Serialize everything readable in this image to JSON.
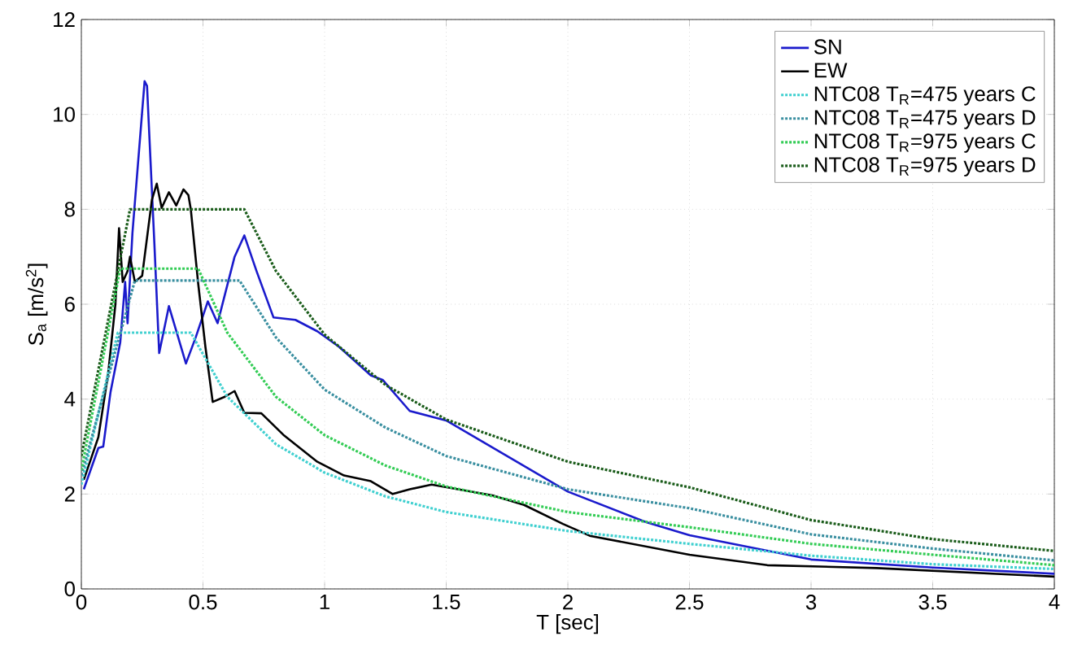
{
  "chart_data": {
    "type": "line",
    "xlabel": "T [sec]",
    "ylabel": "S$_{a}$ [m/s$^{2}$]",
    "xlim": [
      0,
      4
    ],
    "ylim": [
      0,
      12
    ],
    "xticks": [
      0,
      0.5,
      1,
      1.5,
      2,
      2.5,
      3,
      3.5,
      4
    ],
    "yticks": [
      0,
      2,
      4,
      6,
      8,
      10,
      12
    ],
    "grid": true,
    "legend": "top right",
    "series": [
      {
        "name": "SN",
        "color": "#1a1acc",
        "line_style": "solid",
        "x": [
          0.01,
          0.07,
          0.09,
          0.12,
          0.16,
          0.18,
          0.19,
          0.21,
          0.26,
          0.27,
          0.3,
          0.32,
          0.36,
          0.43,
          0.47,
          0.52,
          0.56,
          0.63,
          0.67,
          0.72,
          0.79,
          0.88,
          0.97,
          1.06,
          1.19,
          1.24,
          1.35,
          1.5,
          2.0,
          2.32,
          2.5,
          3.0,
          3.5,
          4.0
        ],
        "values": [
          2.1,
          2.97,
          3.0,
          4.15,
          5.2,
          6.47,
          5.6,
          7.5,
          10.7,
          10.6,
          7.3,
          4.97,
          5.96,
          4.75,
          5.3,
          6.06,
          5.6,
          7.0,
          7.45,
          6.7,
          5.72,
          5.67,
          5.43,
          5.1,
          4.5,
          4.4,
          3.75,
          3.55,
          2.05,
          1.41,
          1.13,
          0.62,
          0.45,
          0.32
        ]
      },
      {
        "name": "EW",
        "color": "#000000",
        "line_style": "solid",
        "x": [
          0.01,
          0.07,
          0.11,
          0.14,
          0.155,
          0.17,
          0.19,
          0.2,
          0.22,
          0.25,
          0.27,
          0.29,
          0.31,
          0.33,
          0.36,
          0.39,
          0.42,
          0.44,
          0.45,
          0.48,
          0.51,
          0.54,
          0.59,
          0.63,
          0.67,
          0.74,
          0.83,
          0.97,
          1.08,
          1.19,
          1.28,
          1.35,
          1.44,
          1.69,
          1.82,
          1.98,
          2.09,
          2.5,
          2.82,
          3.27,
          4.0
        ],
        "values": [
          2.3,
          3.2,
          4.53,
          6.0,
          7.6,
          6.47,
          6.7,
          7.0,
          6.47,
          6.6,
          7.4,
          8.2,
          8.54,
          8.03,
          8.36,
          8.08,
          8.42,
          8.3,
          8.0,
          6.45,
          5.1,
          3.94,
          4.05,
          4.17,
          3.71,
          3.7,
          3.25,
          2.68,
          2.39,
          2.27,
          2.0,
          2.1,
          2.2,
          1.97,
          1.77,
          1.37,
          1.12,
          0.72,
          0.5,
          0.44,
          0.26
        ]
      },
      {
        "name": "NTC08 T$_{R}$=475 years C",
        "color": "#40d0d0",
        "line_style": "dotted",
        "x": [
          0,
          0.15,
          0.45,
          0.6,
          0.8,
          1.0,
          1.25,
          1.5,
          2.0,
          2.5,
          3.0,
          3.5,
          4.0
        ],
        "values": [
          2.2,
          5.4,
          5.4,
          4.05,
          3.05,
          2.45,
          1.95,
          1.62,
          1.22,
          0.95,
          0.7,
          0.52,
          0.42
        ]
      },
      {
        "name": "NTC08 T$_{R}$=475 years D",
        "color": "#3a8fa0",
        "line_style": "dotted",
        "x": [
          0,
          0.22,
          0.65,
          0.8,
          1.0,
          1.25,
          1.5,
          2.0,
          2.5,
          3.0,
          3.5,
          4.0
        ],
        "values": [
          2.4,
          6.5,
          6.5,
          5.3,
          4.2,
          3.4,
          2.8,
          2.1,
          1.7,
          1.15,
          0.85,
          0.6
        ]
      },
      {
        "name": "NTC08 T$_{R}$=975 years C",
        "color": "#33cc55",
        "line_style": "dotted",
        "x": [
          0,
          0.16,
          0.48,
          0.6,
          0.8,
          1.0,
          1.25,
          1.5,
          2.0,
          2.5,
          3.0,
          3.5,
          4.0
        ],
        "values": [
          2.5,
          6.75,
          6.75,
          5.4,
          4.05,
          3.24,
          2.6,
          2.16,
          1.62,
          1.3,
          0.95,
          0.72,
          0.5
        ]
      },
      {
        "name": "NTC08 T$_{R}$=975 years D",
        "color": "#1a5c1a",
        "line_style": "dotted",
        "x": [
          0,
          0.2,
          0.67,
          0.8,
          1.0,
          1.25,
          1.5,
          2.0,
          2.5,
          3.0,
          3.5,
          4.0
        ],
        "values": [
          2.8,
          8.0,
          8.0,
          6.7,
          5.36,
          4.3,
          3.57,
          2.68,
          2.14,
          1.45,
          1.05,
          0.8
        ]
      }
    ]
  }
}
